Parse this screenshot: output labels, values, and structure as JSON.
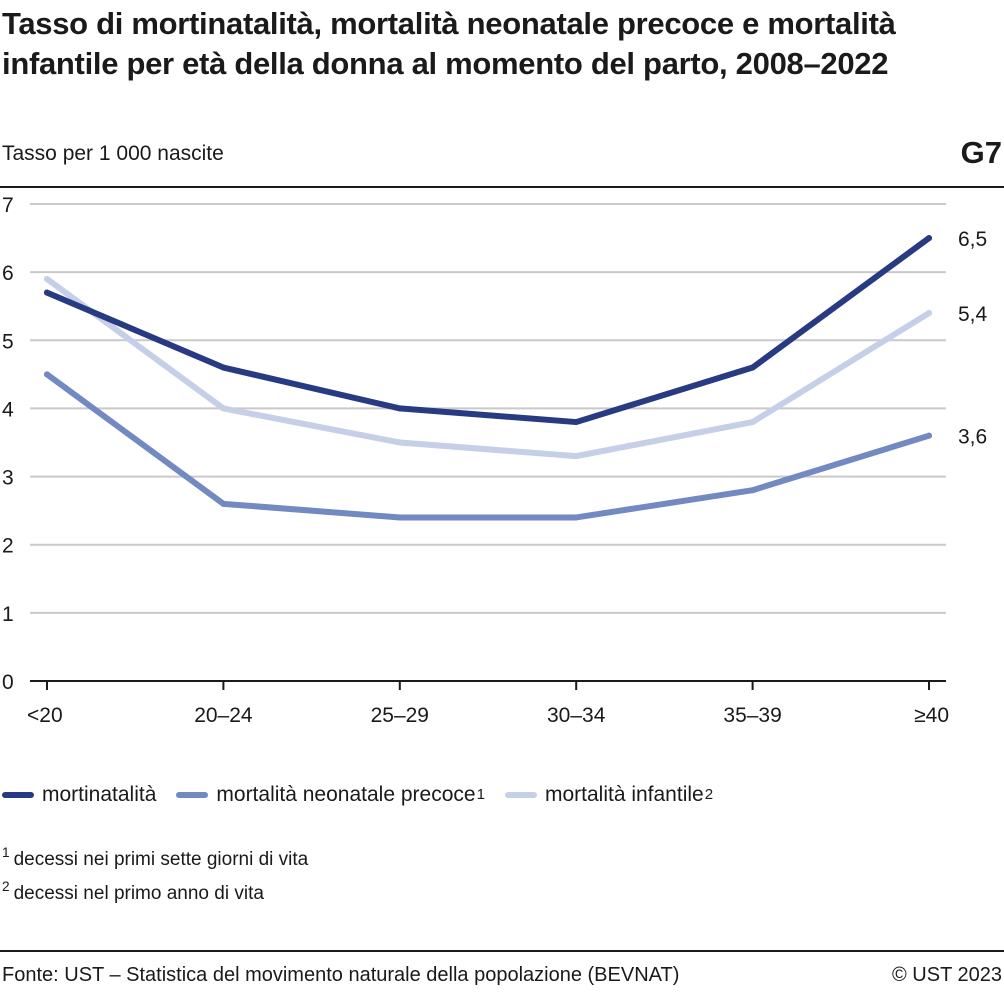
{
  "header": {
    "title": "Tasso di mortinatalità, mortalità neonatale precoce e mortalità infantile per età della donna al momento del parto, 2008–2022",
    "subtitle": "Tasso per 1 000 nascite",
    "code": "G7"
  },
  "chart_data": {
    "type": "line",
    "categories": [
      "<20",
      "20–24",
      "25–29",
      "30–34",
      "35–39",
      "≥40"
    ],
    "ylim": [
      0,
      7
    ],
    "yticks": [
      "0",
      "1",
      "2",
      "3",
      "4",
      "5",
      "6",
      "7"
    ],
    "grid": true,
    "series": [
      {
        "key": "mortinatalita",
        "name": "mortinatalità",
        "sup": "",
        "color": "#273a82",
        "values": [
          5.7,
          4.6,
          4.0,
          3.8,
          4.6,
          6.5
        ],
        "end_label": "6,5"
      },
      {
        "key": "neonatale",
        "name": "mortalità neonatale precoce",
        "sup": "1",
        "color": "#7389c2",
        "values": [
          4.5,
          2.6,
          2.4,
          2.4,
          2.8,
          3.6
        ],
        "end_label": "3,6"
      },
      {
        "key": "infantile",
        "name": "mortalità infantile",
        "sup": "2",
        "color": "#c5cfe8",
        "values": [
          5.9,
          4.0,
          3.5,
          3.3,
          3.8,
          5.4
        ],
        "end_label": "5,4"
      }
    ]
  },
  "notes": [
    {
      "sup": "1",
      "text": "decessi nei primi sette giorni di vita"
    },
    {
      "sup": "2",
      "text": "decessi nel primo anno di vita"
    }
  ],
  "footer": {
    "source": "Fonte: UST – Statistica del movimento naturale della popolazione (BEVNAT)",
    "copyright": "© UST 2023"
  }
}
